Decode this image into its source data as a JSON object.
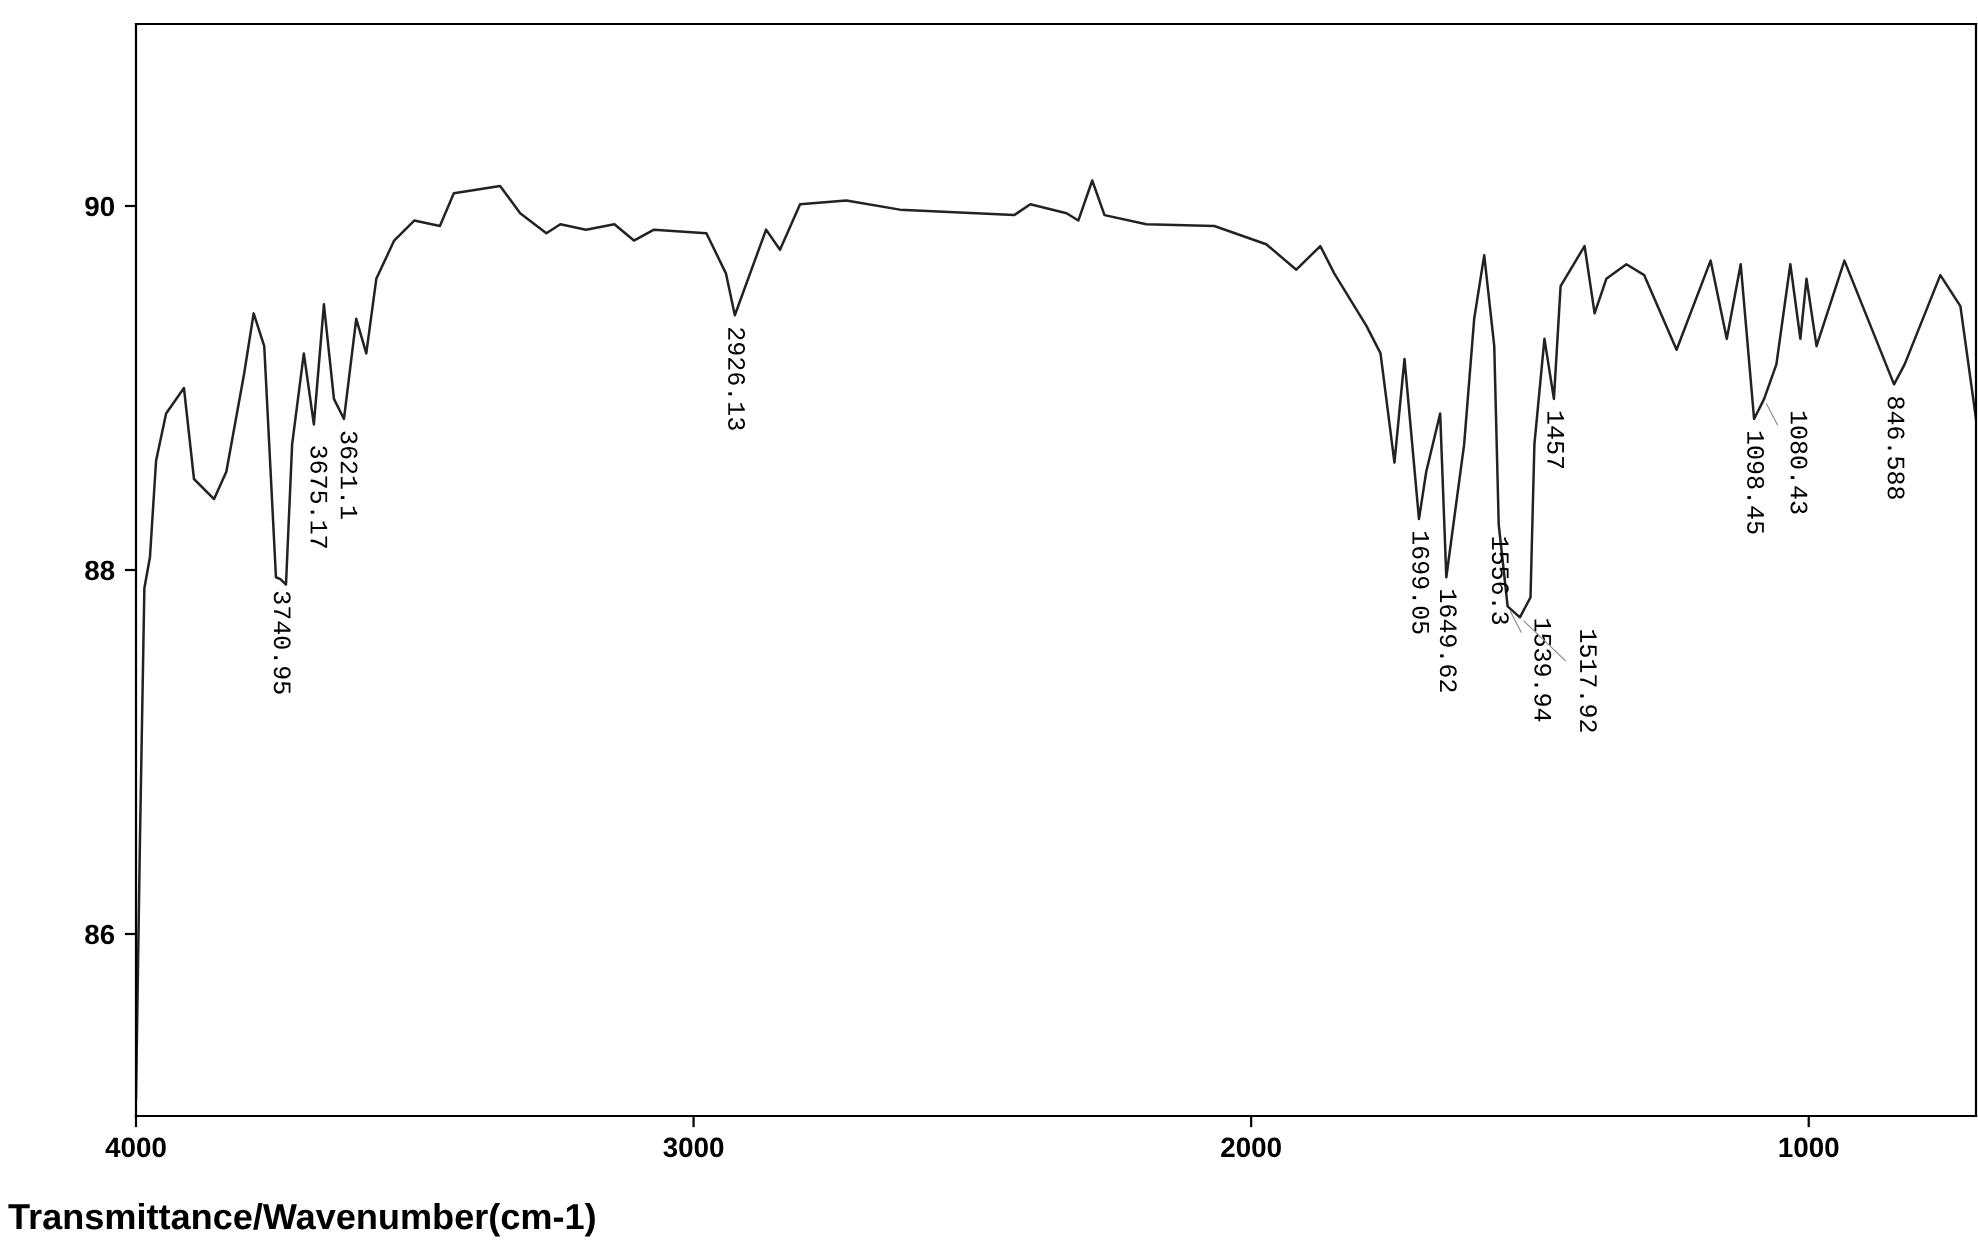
{
  "chart_data": {
    "type": "line",
    "xlabel": "Transmittance/Wavenumber(cm-1)",
    "xlim": [
      4000,
      700
    ],
    "ylim": [
      85,
      91
    ],
    "xticks": [
      4000,
      3000,
      2000,
      1000
    ],
    "yticks": [
      86,
      88,
      90
    ],
    "grid": false,
    "marker": "none",
    "line_style": "solid",
    "series": [
      {
        "color": "#222222",
        "x": [
          4000,
          3993,
          3985,
          3975,
          3964,
          3946,
          3914,
          3896,
          3860,
          3838,
          3806,
          3789,
          3770,
          3749,
          3741,
          3731,
          3720,
          3699,
          3681,
          3663,
          3645,
          3627,
          3605,
          3587,
          3569,
          3537,
          3501,
          3455,
          3430,
          3347,
          3311,
          3264,
          3239,
          3193,
          3142,
          3107,
          3071,
          2977,
          2942,
          2926,
          2870,
          2845,
          2809,
          2726,
          2630,
          2425,
          2396,
          2331,
          2310,
          2285,
          2263,
          2188,
          2066,
          1973,
          1919,
          1876,
          1851,
          1793,
          1768,
          1743,
          1725,
          1699,
          1686,
          1661,
          1650,
          1618,
          1600,
          1582,
          1564,
          1556,
          1540,
          1518,
          1499,
          1492,
          1474,
          1457,
          1445,
          1402,
          1384,
          1363,
          1327,
          1295,
          1237,
          1176,
          1147,
          1122,
          1098,
          1080,
          1058,
          1033,
          1015,
          1004,
          986,
          936,
          847,
          828,
          764,
          728,
          700
        ],
        "values": [
          85.1,
          86.5,
          87.9,
          88.07,
          88.6,
          88.86,
          89.0,
          88.5,
          88.39,
          88.54,
          89.08,
          89.41,
          89.23,
          87.96,
          87.95,
          87.92,
          88.69,
          89.19,
          88.8,
          89.46,
          88.94,
          88.83,
          89.38,
          89.19,
          89.6,
          89.81,
          89.92,
          89.89,
          90.07,
          90.11,
          89.96,
          89.85,
          89.9,
          89.87,
          89.9,
          89.81,
          89.87,
          89.85,
          89.63,
          89.4,
          89.87,
          89.76,
          90.01,
          90.03,
          89.98,
          89.95,
          90.01,
          89.96,
          89.92,
          90.14,
          89.95,
          89.9,
          89.89,
          89.79,
          89.65,
          89.78,
          89.63,
          89.34,
          89.19,
          88.59,
          89.16,
          88.28,
          88.54,
          88.86,
          87.96,
          88.69,
          89.38,
          89.73,
          89.23,
          88.25,
          87.8,
          87.74,
          87.85,
          88.69,
          89.27,
          88.94,
          89.56,
          89.78,
          89.41,
          89.6,
          89.68,
          89.62,
          89.21,
          89.7,
          89.27,
          89.68,
          88.83,
          88.94,
          89.13,
          89.68,
          89.27,
          89.6,
          89.23,
          89.7,
          89.02,
          89.13,
          89.62,
          89.45,
          88.83
        ]
      }
    ],
    "annotations": [
      {
        "text": "3740.95",
        "x": 3740.95,
        "y": 87.95
      },
      {
        "text": "3675.17",
        "x": 3675.17,
        "y": 88.75
      },
      {
        "text": "3621.1",
        "x": 3621.1,
        "y": 88.83
      },
      {
        "text": "2926.13",
        "x": 2926.13,
        "y": 89.4
      },
      {
        "text": "1699.05",
        "x": 1699.05,
        "y": 88.28
      },
      {
        "text": "1649.62",
        "x": 1649.62,
        "y": 87.96
      },
      {
        "text": "1556.3",
        "x": 1556.3,
        "y": 88.25
      },
      {
        "text": "1539.94",
        "x": 1539.94,
        "y": 87.8
      },
      {
        "text": "1517.92",
        "x": 1517.92,
        "y": 87.74
      },
      {
        "text": "1457",
        "x": 1457,
        "y": 88.94
      },
      {
        "text": "1098.45",
        "x": 1098.45,
        "y": 88.83
      },
      {
        "text": "1080.43",
        "x": 1080.43,
        "y": 88.94
      },
      {
        "text": "846.588",
        "x": 846.588,
        "y": 89.02
      }
    ]
  }
}
